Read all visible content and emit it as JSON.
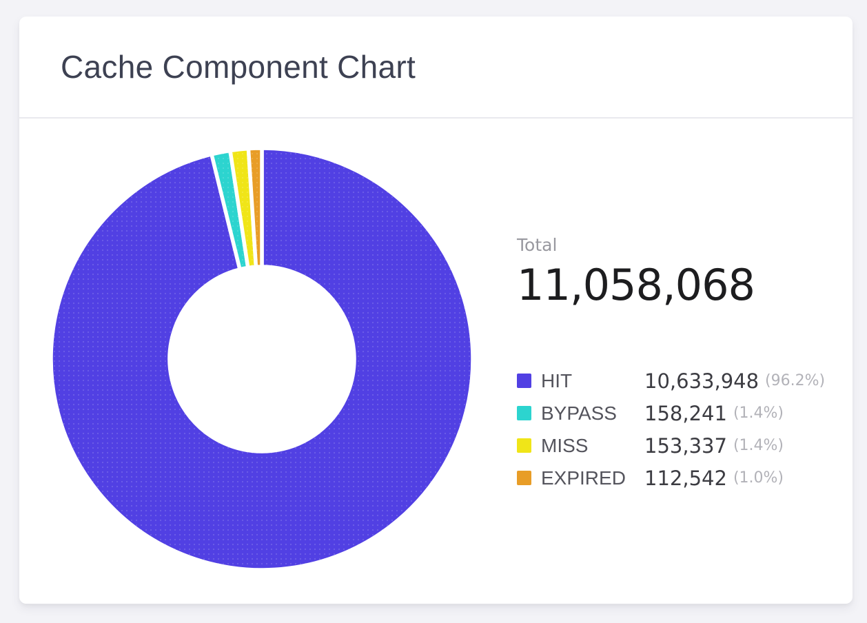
{
  "card": {
    "title": "Cache Component Chart"
  },
  "chart_data": {
    "type": "pie",
    "subtype": "donut",
    "title": "Cache Component Chart",
    "total": {
      "label": "Total",
      "value": 11058068,
      "display": "11,058,068"
    },
    "segments": [
      {
        "label": "HIT",
        "value": 10633948,
        "display": "10,633,948",
        "percent": 96.2,
        "percent_display": "(96.2%)",
        "color": "#5140e3"
      },
      {
        "label": "BYPASS",
        "value": 158241,
        "display": "158,241",
        "percent": 1.4,
        "percent_display": "(1.4%)",
        "color": "#2cd4cf"
      },
      {
        "label": "MISS",
        "value": 153337,
        "display": "153,337",
        "percent": 1.4,
        "percent_display": "(1.4%)",
        "color": "#f0e518"
      },
      {
        "label": "EXPIRED",
        "value": 112542,
        "display": "112,542",
        "percent": 1.0,
        "percent_display": "(1.0%)",
        "color": "#e89d27"
      }
    ],
    "layout": {
      "legend_position": "right",
      "start_angle_deg": 0,
      "direction": "clockwise",
      "inner_radius_ratio": 0.437,
      "slice_gap_color": "#ffffff",
      "slice_texture": "subtle-white-dots"
    }
  }
}
